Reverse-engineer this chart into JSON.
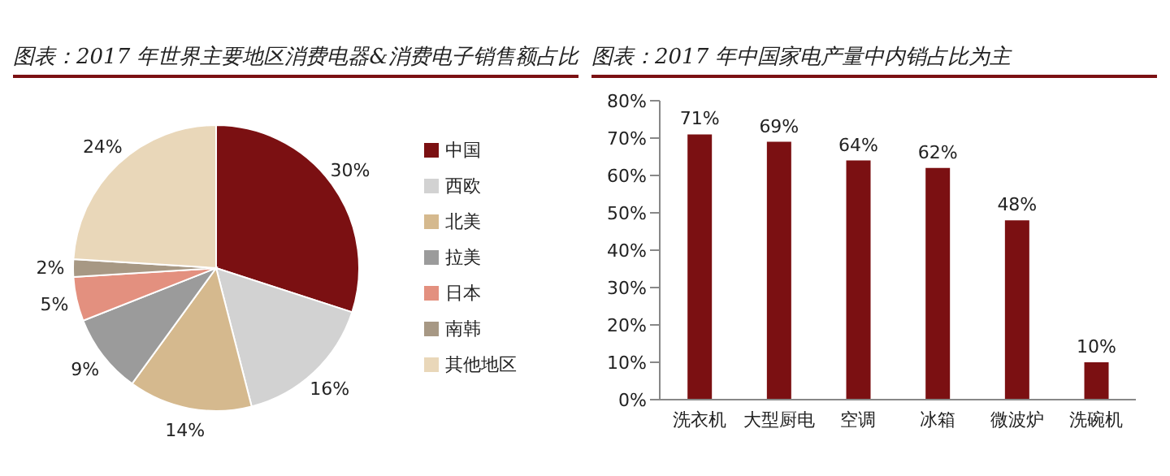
{
  "chart_data": [
    {
      "type": "pie",
      "title": "图表：2017 年世界主要地区消费电器&消费电子销售额占比",
      "categories": [
        "中国",
        "西欧",
        "北美",
        "拉美",
        "日本",
        "南韩",
        "其他地区"
      ],
      "values": [
        30,
        16,
        14,
        9,
        5,
        2,
        24
      ],
      "value_labels": [
        "30%",
        "16%",
        "14%",
        "9%",
        "5%",
        "2%",
        "24%"
      ],
      "colors": [
        "#7b1012",
        "#d2d2d2",
        "#d5b98e",
        "#9b9b9b",
        "#e3907f",
        "#a79884",
        "#e9d7b9"
      ],
      "legend": "right"
    },
    {
      "type": "bar",
      "title": "图表：2017 年中国家电产量中内销占比为主",
      "categories": [
        "洗衣机",
        "大型厨电",
        "空调",
        "冰箱",
        "微波炉",
        "洗碗机"
      ],
      "values": [
        71,
        69,
        64,
        62,
        48,
        10
      ],
      "value_labels": [
        "71%",
        "69%",
        "64%",
        "62%",
        "48%",
        "10%"
      ],
      "color": "#7b1012",
      "ylim": [
        0,
        80
      ],
      "yticks": [
        {
          "value": 0,
          "label": "0%"
        },
        {
          "value": 10,
          "label": "10%"
        },
        {
          "value": 20,
          "label": "20%"
        },
        {
          "value": 30,
          "label": "30%"
        },
        {
          "value": 40,
          "label": "40%"
        },
        {
          "value": 50,
          "label": "50%"
        },
        {
          "value": 60,
          "label": "60%"
        },
        {
          "value": 70,
          "label": "70%"
        },
        {
          "value": 80,
          "label": "80%"
        }
      ],
      "grid": false
    }
  ]
}
